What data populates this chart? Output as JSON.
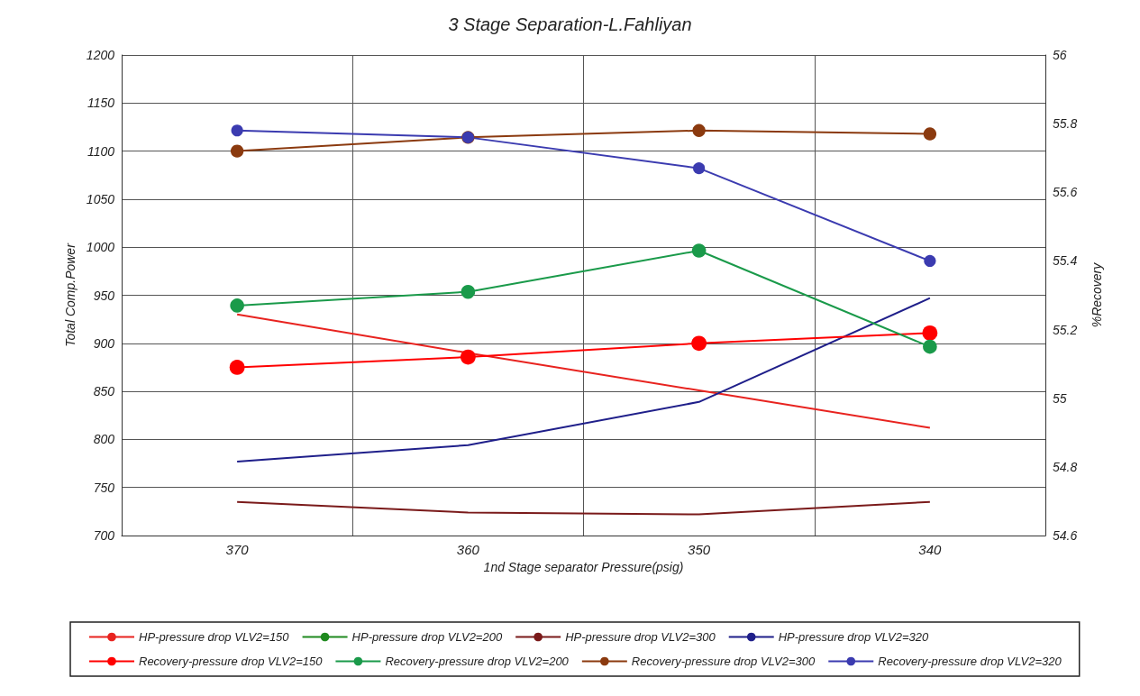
{
  "chart_data": {
    "type": "line",
    "title": "3 Stage Separation-L.Fahliyan",
    "xlabel": "1nd Stage separator Pressure(psig)",
    "ylabel": "Total Comp.Power",
    "y2label": "%Recovery",
    "categories": [
      "370",
      "360",
      "350",
      "340"
    ],
    "ylim": [
      700,
      1200
    ],
    "yticks": [
      700,
      750,
      800,
      850,
      900,
      950,
      1000,
      1050,
      1100,
      1150,
      1200
    ],
    "y2lim": [
      54.6,
      56
    ],
    "y2ticks": [
      54.6,
      54.8,
      55,
      55.2,
      55.4,
      55.6,
      55.8,
      56
    ],
    "grid": true,
    "legend": "bottom",
    "series": [
      {
        "name": "HP-pressure drop VLV2=150",
        "color": "#e8231f",
        "marker": "none",
        "values": [
          930,
          890,
          851,
          812
        ]
      },
      {
        "name": "HP-pressure drop VLV2=200",
        "color": "#1f8a1f",
        "marker": "none",
        "values": [
          null,
          null,
          null,
          null
        ]
      },
      {
        "name": "HP-pressure drop VLV2=300",
        "color": "#7a1a1a",
        "marker": "none",
        "values": [
          735,
          724,
          722,
          735
        ]
      },
      {
        "name": "HP-pressure drop VLV2=320",
        "color": "#1f1f8a",
        "marker": "none",
        "values": [
          777,
          794,
          839,
          947
        ]
      },
      {
        "name": "Recovery-pressure drop VLV2=150",
        "color": "#ff0000",
        "marker": "circle",
        "axis": "y2",
        "values": [
          55.09,
          55.12,
          55.16,
          55.19
        ]
      },
      {
        "name": "Recovery-pressure drop VLV2=200",
        "color": "#1a9a4a",
        "marker": "circle",
        "axis": "y2",
        "values": [
          55.27,
          55.31,
          55.43,
          55.15
        ]
      },
      {
        "name": "Recovery-pressure drop VLV2=300",
        "color": "#8b3a0f",
        "marker": "circle",
        "axis": "y2",
        "values": [
          55.72,
          55.76,
          55.78,
          55.77
        ]
      },
      {
        "name": "Recovery-pressure drop VLV2=320",
        "color": "#3b3bb0",
        "marker": "circle",
        "axis": "y2",
        "values": [
          55.78,
          55.76,
          55.67,
          55.4
        ]
      }
    ]
  }
}
